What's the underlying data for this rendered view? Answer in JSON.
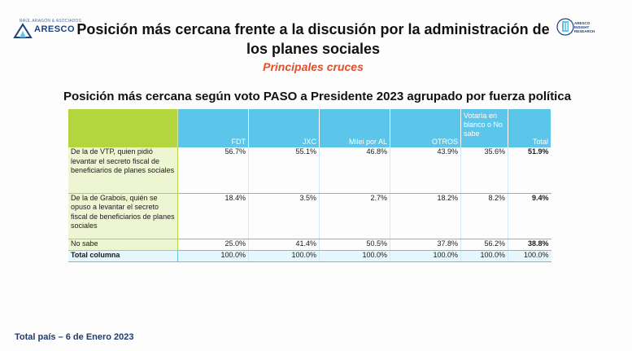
{
  "header": {
    "logo_left_tag": "RAÚL ARAGÓN & ASOCIADOS",
    "logo_left_name": "ARESCO",
    "logo_right_lines": [
      "ARESCO",
      "INSIGHT",
      "RESEARCH"
    ],
    "title": "Posición más cercana frente a la discusión por la administración de los planes sociales",
    "subtitle": "Principales cruces"
  },
  "table": {
    "title": "Posición más cercana según voto PASO a Presidente 2023 agrupado por fuerza política",
    "columns": [
      "FDT",
      "JXC",
      "Milei por AL",
      "OTROS",
      "Votaría en blanco o No sabe",
      "Total"
    ],
    "rows": [
      {
        "label": "De la de VTP, quien pidió levantar el secreto fiscal de beneficiarios de planes sociales",
        "values": [
          "56.7%",
          "55.1%",
          "46.8%",
          "43.9%",
          "35.6%",
          "51.9%"
        ]
      },
      {
        "label": "De la de Grabois, quién se opuso a levantar el secreto fiscal de beneficiarios de planes sociales",
        "values": [
          "18.4%",
          "3.5%",
          "2.7%",
          "18.2%",
          "8.2%",
          "9.4%"
        ]
      },
      {
        "label": "No sabe",
        "values": [
          "25.0%",
          "41.4%",
          "50.5%",
          "37.8%",
          "56.2%",
          "38.8%"
        ]
      },
      {
        "label": "Total columna",
        "values": [
          "100.0%",
          "100.0%",
          "100.0%",
          "100.0%",
          "100.0%",
          "100.0%"
        ]
      }
    ]
  },
  "footer": {
    "text": "Total país – 6 de Enero 2023"
  },
  "colors": {
    "header_blue": "#5cc5ea",
    "corner_green": "#b3d53d",
    "subtitle_orange": "#e0502a",
    "footer_navy": "#1f3a6e"
  }
}
